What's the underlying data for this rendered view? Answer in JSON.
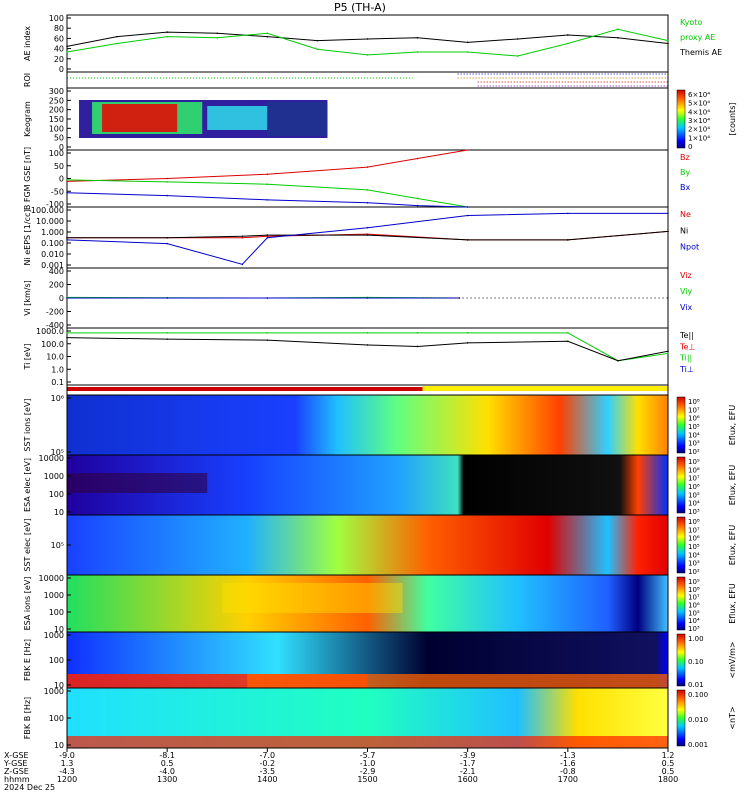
{
  "title": "P5 (TH-A)",
  "time_axis": {
    "ticks": [
      "1200",
      "1300",
      "1400",
      "1500",
      "1600",
      "1700",
      "1800"
    ],
    "rows": [
      {
        "label": "X-GSE",
        "values": [
          "-9.0",
          "-8.1",
          "-7.0",
          "-5.7",
          "-3.9",
          "-1.3",
          "1.2"
        ]
      },
      {
        "label": "Y-GSE",
        "values": [
          "1.3",
          "0.5",
          "-0.2",
          "-1.0",
          "-1.7",
          "-1.6",
          "0.5"
        ]
      },
      {
        "label": "Z-GSE",
        "values": [
          "-4.3",
          "-4.0",
          "-3.5",
          "-2.9",
          "-2.1",
          "-0.8",
          "0.5"
        ]
      },
      {
        "label": "hhmm",
        "values": [
          "1200",
          "1300",
          "1400",
          "1500",
          "1600",
          "1700",
          "1800"
        ]
      }
    ],
    "date": "2024 Dec 25"
  },
  "panels": [
    {
      "id": "ae",
      "ylabel": "AE index",
      "yticks": [
        "100",
        "80",
        "60",
        "40",
        "20",
        "0"
      ],
      "legend": [
        {
          "text": "Kyoto",
          "color": "#00cc00"
        },
        {
          "text": "proxy AE",
          "color": "#00cc00"
        },
        {
          "text": "Themis AE",
          "color": "#000000"
        }
      ]
    },
    {
      "id": "roi",
      "ylabel": "ROI",
      "yticks": [],
      "legend": []
    },
    {
      "id": "keogram",
      "ylabel": "Keogram",
      "yticks": [
        "300",
        "250",
        "200",
        "150",
        "100",
        "50",
        "0"
      ],
      "cbar_ticks": [
        "6×10⁴",
        "5×10⁴",
        "4×10⁴",
        "3×10⁴",
        "2×10⁴",
        "1×10⁴",
        "0"
      ],
      "cbar_label": "[counts]"
    },
    {
      "id": "bfgm",
      "ylabel": "B FGM GSE [nT]",
      "yticks": [
        "100",
        "50",
        "0",
        "-50",
        "-100"
      ],
      "legend": [
        {
          "text": "Bz",
          "color": "#dd0000"
        },
        {
          "text": "By",
          "color": "#00cc00"
        },
        {
          "text": "Bx",
          "color": "#0000cc"
        }
      ]
    },
    {
      "id": "density",
      "ylabel": "Ni eEPS [1/cc]",
      "yticks": [
        "100.000",
        "10.000",
        "1.000",
        "0.100",
        "0.010",
        "0.001"
      ],
      "legend": [
        {
          "text": "Ne",
          "color": "#dd0000"
        },
        {
          "text": "Ni",
          "color": "#000000"
        },
        {
          "text": "Npot",
          "color": "#0000cc"
        }
      ]
    },
    {
      "id": "velocity",
      "ylabel": "Vi [km/s]",
      "yticks": [
        "400",
        "200",
        "0",
        "-200",
        "-400"
      ],
      "legend": [
        {
          "text": "Viz",
          "color": "#dd0000"
        },
        {
          "text": "Viy",
          "color": "#00cc00"
        },
        {
          "text": "Vix",
          "color": "#0000cc"
        }
      ]
    },
    {
      "id": "temperature",
      "ylabel": "Ti [eV]",
      "yticks": [
        "1000.0",
        "100.0",
        "10.0",
        "1.0",
        "0.1"
      ],
      "legend": [
        {
          "text": "Te||",
          "color": "#000000"
        },
        {
          "text": "Te⊥",
          "color": "#dd0000"
        },
        {
          "text": "Ti||",
          "color": "#00cc00"
        },
        {
          "text": "Ti⊥",
          "color": "#0000cc"
        }
      ]
    },
    {
      "id": "mode",
      "ylabel": "",
      "yticks": []
    },
    {
      "id": "sst_i",
      "ylabel": "SST ions [eV]",
      "yticks": [
        "10⁶",
        "10⁵"
      ],
      "cbar_label": "Eflux, EFU",
      "cbar_ticks": [
        "10⁸",
        "10⁷",
        "10⁶",
        "10⁵",
        "10⁴",
        "10³",
        "10²"
      ]
    },
    {
      "id": "esa_e",
      "ylabel": "ESA elec [eV]",
      "yticks": [
        "10000",
        "1000",
        "100",
        "10"
      ],
      "cbar_label": "Eflux, EFU",
      "cbar_ticks": [
        "10⁹",
        "10⁸",
        "10⁷",
        "10⁶",
        "10⁵",
        "10⁴",
        "10³"
      ]
    },
    {
      "id": "sst_e",
      "ylabel": "SST elec [eV]",
      "yticks": [
        "10⁵"
      ],
      "cbar_label": "Eflux, EFU",
      "cbar_ticks": [
        "10⁸",
        "10⁷",
        "10⁶",
        "10⁵",
        "10⁴",
        "10³",
        "10²"
      ]
    },
    {
      "id": "esa_i",
      "ylabel": "ESA ions [eV]",
      "yticks": [
        "10000",
        "1000",
        "100",
        "10"
      ],
      "cbar_label": "Eflux, EFU",
      "cbar_ticks": [
        "10⁹",
        "10⁸",
        "10⁷",
        "10⁶",
        "10⁵",
        "10⁴",
        "10³"
      ]
    },
    {
      "id": "fbk_e",
      "ylabel": "FBK E [Hz]",
      "yticks": [
        "1000",
        "100",
        "10"
      ],
      "cbar_label": "<mV/m>",
      "cbar_ticks": [
        "1.00",
        "0.10",
        "0.01"
      ]
    },
    {
      "id": "fbk_b",
      "ylabel": "FBK B [Hz]",
      "yticks": [
        "1000",
        "100",
        "10"
      ],
      "cbar_label": "<nT>",
      "cbar_ticks": [
        "0.100",
        "0.010",
        "0.001"
      ]
    }
  ],
  "chart_data": [
    {
      "type": "line",
      "title": "P5 (TH-A)",
      "ylabel": "AE index",
      "ylim": [
        0,
        100
      ],
      "x": [
        "1200",
        "1230",
        "1300",
        "1330",
        "1400",
        "1430",
        "1500",
        "1530",
        "1600",
        "1630",
        "1700",
        "1730",
        "1800"
      ],
      "series": [
        {
          "name": "Themis AE",
          "values": [
            45,
            62,
            70,
            68,
            62,
            55,
            58,
            60,
            52,
            58,
            65,
            60,
            50
          ]
        },
        {
          "name": "Kyoto proxy AE",
          "values": [
            35,
            50,
            62,
            60,
            68,
            40,
            30,
            35,
            35,
            28,
            50,
            75,
            55
          ]
        }
      ]
    },
    {
      "type": "line",
      "ylabel": "B FGM GSE [nT]",
      "ylim": [
        -100,
        100
      ],
      "x": [
        "1200",
        "1300",
        "1400",
        "1500",
        "1530",
        "1600"
      ],
      "series": [
        {
          "name": "Bz",
          "values": [
            -10,
            0,
            15,
            40,
            70,
            100
          ]
        },
        {
          "name": "By",
          "values": [
            -5,
            -12,
            -20,
            -40,
            -70,
            -100
          ]
        },
        {
          "name": "Bx",
          "values": [
            -50,
            -60,
            -75,
            -85,
            -95,
            -100
          ]
        }
      ]
    },
    {
      "type": "line",
      "ylabel": "Ni eEPS [1/cc]",
      "ylim": [
        0.001,
        100
      ],
      "x": [
        "1200",
        "1300",
        "1345",
        "1400",
        "1500",
        "1600",
        "1700",
        "1800"
      ],
      "series": [
        {
          "name": "Ne",
          "values": [
            0.3,
            0.3,
            0.3,
            0.4,
            0.6,
            0.2,
            0.2,
            1.0
          ]
        },
        {
          "name": "Ni",
          "values": [
            0.3,
            0.3,
            0.4,
            0.5,
            0.5,
            0.2,
            0.2,
            1.0
          ]
        },
        {
          "name": "Npot",
          "values": [
            0.2,
            0.1,
            0.002,
            0.3,
            2,
            20,
            30,
            30
          ]
        }
      ]
    },
    {
      "type": "line",
      "ylabel": "Vi [km/s]",
      "ylim": [
        -500,
        500
      ],
      "x": [
        "1200",
        "1300",
        "1400",
        "1500",
        "1555"
      ],
      "series": [
        {
          "name": "Viz",
          "values": [
            0,
            0,
            0,
            0,
            0
          ]
        },
        {
          "name": "Viy",
          "values": [
            10,
            5,
            0,
            10,
            0
          ]
        },
        {
          "name": "Vix",
          "values": [
            0,
            0,
            0,
            0,
            0
          ]
        }
      ]
    },
    {
      "type": "line",
      "ylabel": "Ti [eV]",
      "ylim": [
        0.1,
        5000
      ],
      "x": [
        "1200",
        "1300",
        "1400",
        "1500",
        "1530",
        "1600",
        "1700",
        "1730",
        "1800"
      ],
      "series": [
        {
          "name": "Ti||",
          "values": [
            2000,
            2000,
            2000,
            2000,
            2000,
            2000,
            2000,
            10,
            40
          ]
        },
        {
          "name": "Te||",
          "values": [
            800,
            600,
            500,
            200,
            150,
            300,
            400,
            10,
            60
          ]
        }
      ]
    },
    {
      "type": "heatmap",
      "ylabel": "Keogram",
      "ylim": [
        0,
        300
      ],
      "cbar_range": [
        0,
        60000
      ]
    },
    {
      "type": "heatmap",
      "ylabel": "SST ions [eV]",
      "cbar_range": [
        100,
        100000000
      ]
    },
    {
      "type": "heatmap",
      "ylabel": "ESA elec [eV]",
      "ylim": [
        10,
        30000
      ],
      "cbar_range": [
        1000,
        1000000000
      ]
    },
    {
      "type": "heatmap",
      "ylabel": "SST elec [eV]",
      "cbar_range": [
        100,
        100000000
      ]
    },
    {
      "type": "heatmap",
      "ylabel": "ESA ions [eV]",
      "ylim": [
        10,
        30000
      ],
      "cbar_range": [
        1000,
        1000000000
      ]
    },
    {
      "type": "heatmap",
      "ylabel": "FBK E [Hz]",
      "cbar_range": [
        0.01,
        1
      ]
    },
    {
      "type": "heatmap",
      "ylabel": "FBK B [Hz]",
      "cbar_range": [
        0.001,
        0.1
      ]
    }
  ]
}
